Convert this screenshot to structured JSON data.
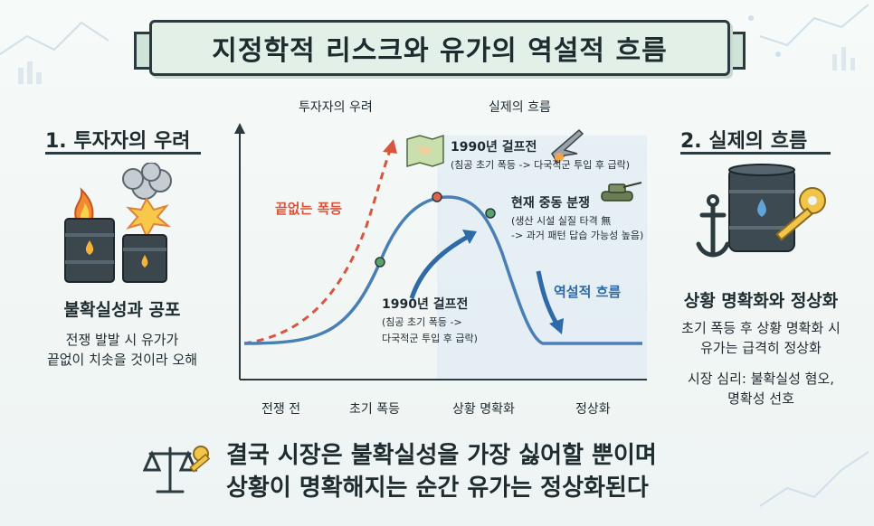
{
  "title": "지정학적 리스크와 유가의 역설적 흐름",
  "left_panel": {
    "heading": "1. 투자자의 우려",
    "subheading": "불확실성과 공포",
    "desc_line1": "전쟁 발발 시 유가가",
    "desc_line2": "끝없이 치솟을 것이라 오해"
  },
  "right_panel": {
    "heading": "2. 실제의 흐름",
    "subheading": "상황 명확화와 정상화",
    "desc_line1": "초기 폭등 후 상황 명확화 시",
    "desc_line2": "유가는 급격히 정상화",
    "desc_line3": "시장 심리: 불확실성 혐오,",
    "desc_line4": "명확성 선호"
  },
  "chart": {
    "top_label_left": "투자자의 우려",
    "top_label_right": "실제의 흐름",
    "endless_surge": "끝없는 폭등",
    "paradox_flow": "역설적 흐름",
    "x_stages": [
      "전쟁 전",
      "초기 폭등",
      "상황 명확화",
      "정상화"
    ],
    "annotation_top": {
      "title": "1990년 걸프전",
      "detail": "(침공 초기 폭등 -> 다국적군 투입 후 급락)"
    },
    "annotation_current": {
      "title": "현재 중동 분쟁",
      "detail1": "(생산 시설 실질 타격 無",
      "detail2": "-> 과거 패턴 답습 가능성 높음)"
    },
    "annotation_mid": {
      "title": "1990년 걸프전",
      "detail1": "(침공 초기 폭등 ->",
      "detail2": "다국적군 투입 후 급락)"
    }
  },
  "bottom": {
    "line1": "결국 시장은 불확실성을 가장 싫어할 뿐이며",
    "line2": "상황이 명확해지는 순간 유가는 정상화된다"
  },
  "colors": {
    "accent_red": "#d8553e",
    "accent_blue": "#2e6aa8",
    "curve_blue": "#4a7fb5",
    "banner_bg": "#e3f0e8"
  }
}
